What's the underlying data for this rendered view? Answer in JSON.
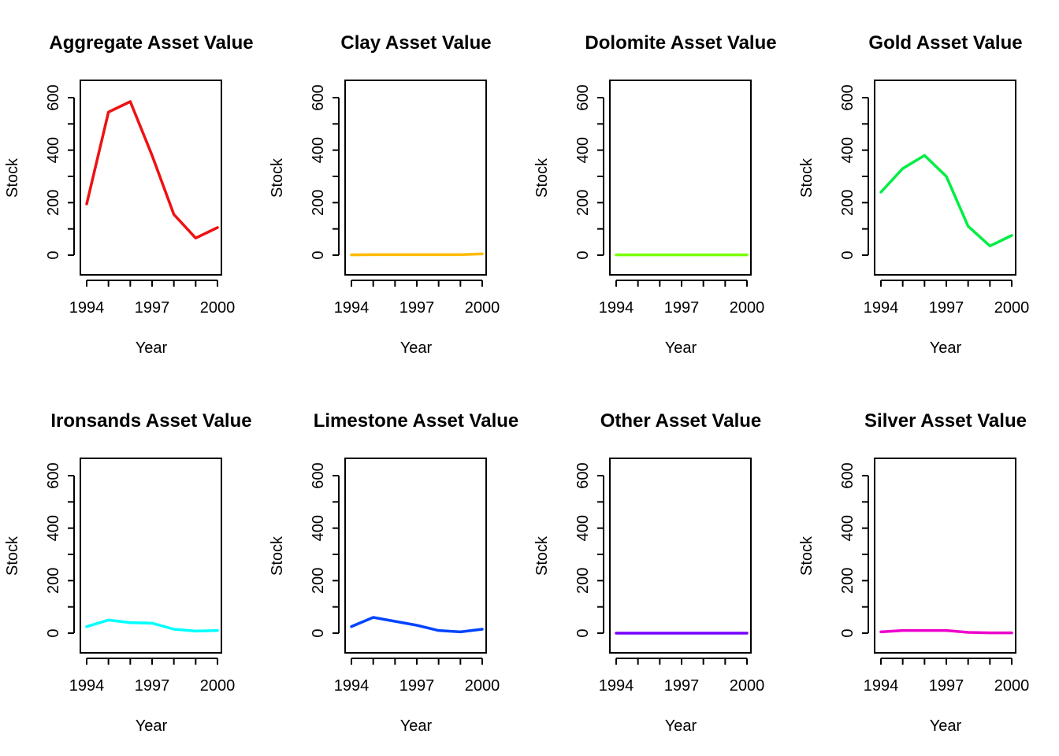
{
  "chart_data": [
    {
      "type": "line",
      "title": "Aggregate Asset Value",
      "xlabel": "Year",
      "ylabel": "Stock",
      "x": [
        1994,
        1995,
        1996,
        1997,
        1998,
        1999,
        2000
      ],
      "values": [
        195,
        545,
        585,
        380,
        155,
        65,
        105
      ],
      "xlim": [
        1994,
        2000
      ],
      "ylim": [
        -75,
        665
      ],
      "xticks": [
        "1994",
        "1997",
        "2000"
      ],
      "yticks": [
        "0",
        "200",
        "400",
        "600"
      ],
      "color": "#ee1111",
      "grid": false
    },
    {
      "type": "line",
      "title": "Clay Asset Value",
      "xlabel": "Year",
      "ylabel": "Stock",
      "x": [
        1994,
        1995,
        1996,
        1997,
        1998,
        1999,
        2000
      ],
      "values": [
        1,
        2,
        2,
        2,
        2,
        2,
        5
      ],
      "xlim": [
        1994,
        2000
      ],
      "ylim": [
        -75,
        665
      ],
      "xticks": [
        "1994",
        "1997",
        "2000"
      ],
      "yticks": [
        "0",
        "200",
        "400",
        "600"
      ],
      "color": "#ffbb00",
      "grid": false
    },
    {
      "type": "line",
      "title": "Dolomite Asset Value",
      "xlabel": "Year",
      "ylabel": "Stock",
      "x": [
        1994,
        1995,
        1996,
        1997,
        1998,
        1999,
        2000
      ],
      "values": [
        1,
        1,
        1,
        1,
        1,
        1,
        1
      ],
      "xlim": [
        1994,
        2000
      ],
      "ylim": [
        -75,
        665
      ],
      "xticks": [
        "1994",
        "1997",
        "2000"
      ],
      "yticks": [
        "0",
        "200",
        "400",
        "600"
      ],
      "color": "#77ff00",
      "grid": false
    },
    {
      "type": "line",
      "title": "Gold Asset Value",
      "xlabel": "Year",
      "ylabel": "Stock",
      "x": [
        1994,
        1995,
        1996,
        1997,
        1998,
        1999,
        2000
      ],
      "values": [
        240,
        330,
        380,
        300,
        110,
        35,
        75
      ],
      "xlim": [
        1994,
        2000
      ],
      "ylim": [
        -75,
        665
      ],
      "xticks": [
        "1994",
        "1997",
        "2000"
      ],
      "yticks": [
        "0",
        "200",
        "400",
        "600"
      ],
      "color": "#00ee44",
      "grid": false
    },
    {
      "type": "line",
      "title": "Ironsands Asset Value",
      "xlabel": "Year",
      "ylabel": "Stock",
      "x": [
        1994,
        1995,
        1996,
        1997,
        1998,
        1999,
        2000
      ],
      "values": [
        25,
        50,
        40,
        38,
        15,
        8,
        10
      ],
      "xlim": [
        1994,
        2000
      ],
      "ylim": [
        -75,
        665
      ],
      "xticks": [
        "1994",
        "1997",
        "2000"
      ],
      "yticks": [
        "0",
        "200",
        "400",
        "600"
      ],
      "color": "#00ffff",
      "grid": false
    },
    {
      "type": "line",
      "title": "Limestone Asset Value",
      "xlabel": "Year",
      "ylabel": "Stock",
      "x": [
        1994,
        1995,
        1996,
        1997,
        1998,
        1999,
        2000
      ],
      "values": [
        25,
        60,
        45,
        30,
        10,
        5,
        15
      ],
      "xlim": [
        1994,
        2000
      ],
      "ylim": [
        -75,
        665
      ],
      "xticks": [
        "1994",
        "1997",
        "2000"
      ],
      "yticks": [
        "0",
        "200",
        "400",
        "600"
      ],
      "color": "#0044ff",
      "grid": false
    },
    {
      "type": "line",
      "title": "Other Asset Value",
      "xlabel": "Year",
      "ylabel": "Stock",
      "x": [
        1994,
        1995,
        1996,
        1997,
        1998,
        1999,
        2000
      ],
      "values": [
        0,
        0,
        0,
        0,
        0,
        0,
        0
      ],
      "xlim": [
        1994,
        2000
      ],
      "ylim": [
        -75,
        665
      ],
      "xticks": [
        "1994",
        "1997",
        "2000"
      ],
      "yticks": [
        "0",
        "200",
        "400",
        "600"
      ],
      "color": "#7700ff",
      "grid": false
    },
    {
      "type": "line",
      "title": "Silver Asset Value",
      "xlabel": "Year",
      "ylabel": "Stock",
      "x": [
        1994,
        1995,
        1996,
        1997,
        1998,
        1999,
        2000
      ],
      "values": [
        5,
        10,
        10,
        10,
        3,
        1,
        1
      ],
      "xlim": [
        1994,
        2000
      ],
      "ylim": [
        -75,
        665
      ],
      "xticks": [
        "1994",
        "1997",
        "2000"
      ],
      "yticks": [
        "0",
        "200",
        "400",
        "600"
      ],
      "color": "#ee00cc",
      "grid": false
    }
  ]
}
